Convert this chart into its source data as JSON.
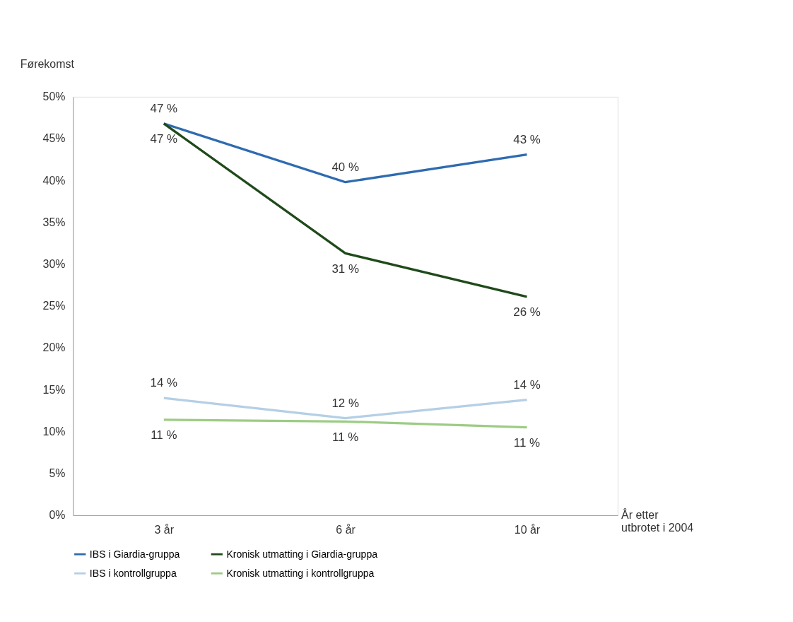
{
  "chart_data": {
    "type": "line",
    "ylabel": "Førekomst",
    "xlabel": "År etter utbrotet i 2004",
    "categories": [
      "3 år",
      "6 år",
      "10 år"
    ],
    "series": [
      {
        "name": "IBS i Giardia-gruppa",
        "color": "#2e6bb0",
        "values": [
          46.8,
          39.8,
          43.1
        ],
        "value_labels": [
          "47 %",
          "40 %",
          "43 %"
        ]
      },
      {
        "name": "Kronisk utmatting i Giardia-gruppa",
        "color": "#1f4a1a",
        "values": [
          46.8,
          31.3,
          26.1
        ],
        "value_labels": [
          "47 %",
          "31 %",
          "26 %"
        ]
      },
      {
        "name": "IBS i kontrollgruppa",
        "color": "#b4cfe6",
        "values": [
          14.0,
          11.6,
          13.8
        ],
        "value_labels": [
          "14 %",
          "12 %",
          "14 %"
        ]
      },
      {
        "name": "Kronisk utmatting i kontrollgruppa",
        "color": "#9ccc84",
        "values": [
          11.4,
          11.2,
          10.5
        ],
        "value_labels": [
          "11 %",
          "11 %",
          "11 %"
        ]
      }
    ],
    "ylim": [
      0,
      50
    ],
    "yticks": [
      {
        "value": 0,
        "label": "0%"
      },
      {
        "value": 5,
        "label": "5%"
      },
      {
        "value": 10,
        "label": "10%"
      },
      {
        "value": 15,
        "label": "15%"
      },
      {
        "value": 20,
        "label": "20%"
      },
      {
        "value": 25,
        "label": "25%"
      },
      {
        "value": 30,
        "label": "30%"
      },
      {
        "value": 35,
        "label": "35%"
      },
      {
        "value": 40,
        "label": "40%"
      },
      {
        "value": 45,
        "label": "45%"
      },
      {
        "value": 50,
        "label": "50%"
      }
    ],
    "grid": false,
    "legend": "bottom"
  }
}
